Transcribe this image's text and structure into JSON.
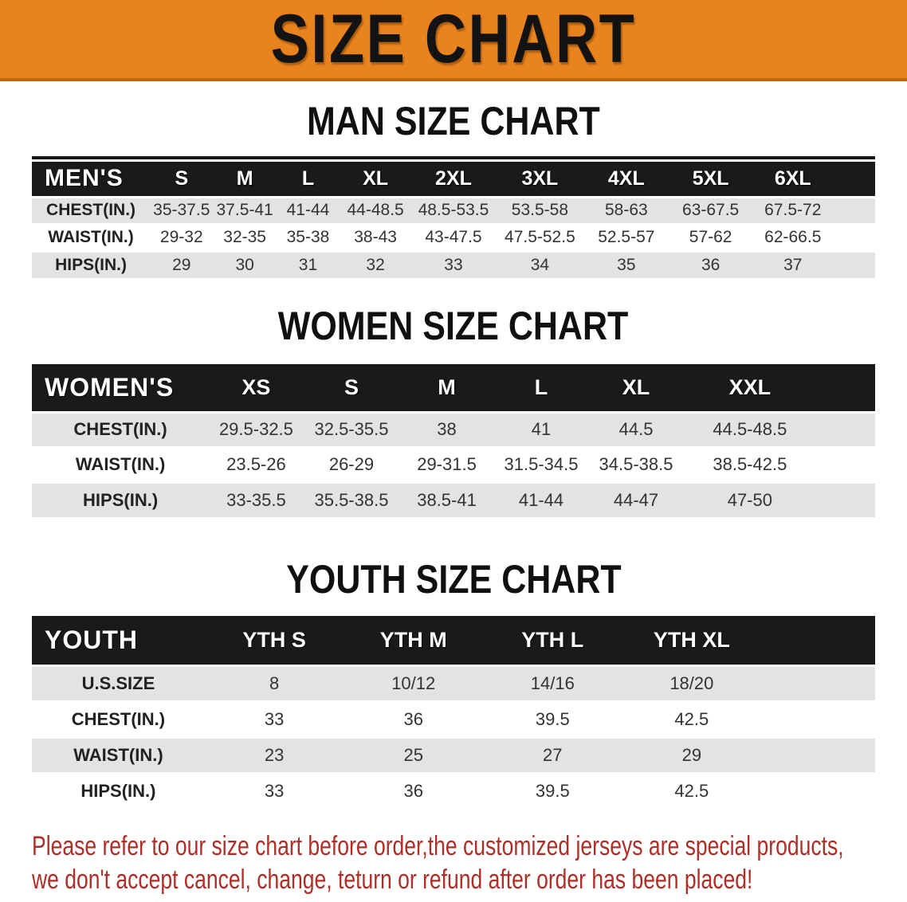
{
  "banner": {
    "title": "SIZE CHART",
    "bg_color": "#E8831D"
  },
  "headings": {
    "men": "MAN SIZE CHART",
    "women": "WOMEN SIZE CHART",
    "youth": "YOUTH SIZE CHART"
  },
  "tables": {
    "men": {
      "group_label": "MEN'S",
      "columns": [
        "S",
        "M",
        "L",
        "XL",
        "2XL",
        "3XL",
        "4XL",
        "5XL",
        "6XL"
      ],
      "rows": [
        {
          "label": "CHEST(IN.)",
          "values": [
            "35-37.5",
            "37.5-41",
            "41-44",
            "44-48.5",
            "48.5-53.5",
            "53.5-58",
            "58-63",
            "63-67.5",
            "67.5-72"
          ]
        },
        {
          "label": "WAIST(IN.)",
          "values": [
            "29-32",
            "32-35",
            "35-38",
            "38-43",
            "43-47.5",
            "47.5-52.5",
            "52.5-57",
            "57-62",
            "62-66.5"
          ]
        },
        {
          "label": "HIPS(IN.)",
          "values": [
            "29",
            "30",
            "31",
            "32",
            "33",
            "34",
            "35",
            "36",
            "37"
          ]
        }
      ]
    },
    "women": {
      "group_label": "WOMEN'S",
      "columns": [
        "XS",
        "S",
        "M",
        "L",
        "XL",
        "XXL"
      ],
      "rows": [
        {
          "label": "CHEST(IN.)",
          "values": [
            "29.5-32.5",
            "32.5-35.5",
            "38",
            "41",
            "44.5",
            "44.5-48.5"
          ]
        },
        {
          "label": "WAIST(IN.)",
          "values": [
            "23.5-26",
            "26-29",
            "29-31.5",
            "31.5-34.5",
            "34.5-38.5",
            "38.5-42.5"
          ]
        },
        {
          "label": "HIPS(IN.)",
          "values": [
            "33-35.5",
            "35.5-38.5",
            "38.5-41",
            "41-44",
            "44-47",
            "47-50"
          ]
        }
      ]
    },
    "youth": {
      "group_label": "YOUTH",
      "columns": [
        "YTH S",
        "YTH M",
        "YTH L",
        "YTH XL"
      ],
      "rows": [
        {
          "label": "U.S.SIZE",
          "values": [
            "8",
            "10/12",
            "14/16",
            "18/20"
          ]
        },
        {
          "label": "CHEST(IN.)",
          "values": [
            "33",
            "36",
            "39.5",
            "42.5"
          ]
        },
        {
          "label": "WAIST(IN.)",
          "values": [
            "23",
            "25",
            "27",
            "29"
          ]
        },
        {
          "label": "HIPS(IN.)",
          "values": [
            "33",
            "36",
            "39.5",
            "42.5"
          ]
        }
      ]
    }
  },
  "disclaimer": {
    "line1": "Please refer to our size chart before order,the customized jerseys are special products,",
    "line2": "we don't accept cancel, change, teturn or refund after order has been placed!",
    "color": "#AF2E27"
  },
  "colors": {
    "banner_orange": "#E8831D",
    "banner_edge": "#C06A10",
    "bar_black": "#1A1A1A",
    "row_gray": "#E3E3E3",
    "row_white": "#FFFFFF"
  }
}
